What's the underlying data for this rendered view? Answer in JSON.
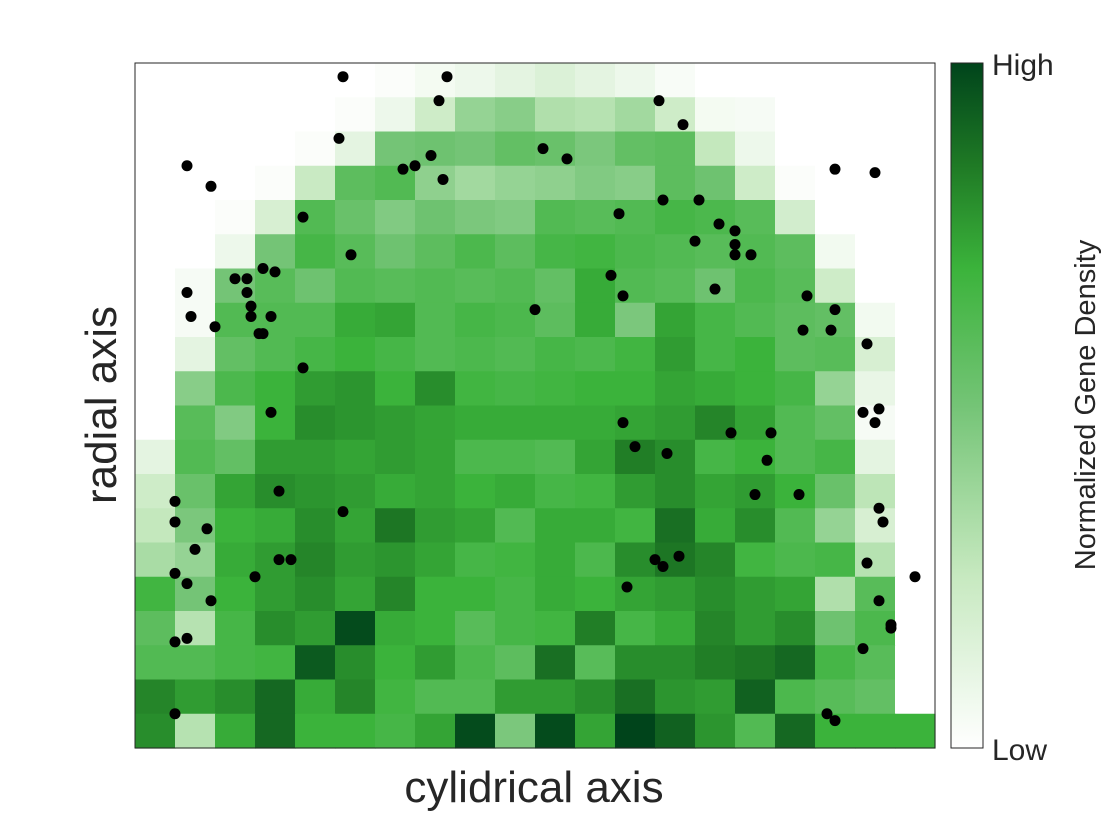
{
  "chart_data": {
    "type": "heatmap",
    "title": "",
    "xlabel": "cylidrical axis",
    "ylabel": "radial axis",
    "x_ticks": "none",
    "y_ticks": "none",
    "grid": false,
    "colorbar": {
      "label": "Normalized Gene Density",
      "high_label": "High",
      "low_label": "Low",
      "min_color": "#ffffff",
      "max_color": "#00441b",
      "position": "right"
    },
    "grid_size": {
      "columns": 20,
      "rows": 20
    },
    "density_matrix": [
      [
        0.0,
        0.0,
        0.0,
        0.0,
        0.0,
        0.0,
        0.02,
        0.05,
        0.08,
        0.12,
        0.16,
        0.12,
        0.08,
        0.03,
        0.0,
        0.0,
        0.0,
        0.0,
        0.0,
        0.0
      ],
      [
        0.0,
        0.0,
        0.0,
        0.0,
        0.0,
        0.02,
        0.08,
        0.22,
        0.4,
        0.44,
        0.32,
        0.3,
        0.36,
        0.22,
        0.05,
        0.04,
        0.0,
        0.0,
        0.0,
        0.0
      ],
      [
        0.0,
        0.0,
        0.0,
        0.0,
        0.02,
        0.12,
        0.5,
        0.52,
        0.5,
        0.56,
        0.54,
        0.48,
        0.56,
        0.58,
        0.26,
        0.08,
        0.0,
        0.0,
        0.0,
        0.0
      ],
      [
        0.0,
        0.0,
        0.0,
        0.02,
        0.24,
        0.58,
        0.62,
        0.42,
        0.36,
        0.4,
        0.42,
        0.46,
        0.44,
        0.58,
        0.52,
        0.22,
        0.02,
        0.0,
        0.0,
        0.0
      ],
      [
        0.0,
        0.0,
        0.02,
        0.18,
        0.62,
        0.54,
        0.46,
        0.52,
        0.48,
        0.46,
        0.62,
        0.6,
        0.62,
        0.66,
        0.64,
        0.6,
        0.2,
        0.0,
        0.0,
        0.0
      ],
      [
        0.0,
        0.0,
        0.08,
        0.5,
        0.66,
        0.6,
        0.52,
        0.58,
        0.64,
        0.58,
        0.66,
        0.68,
        0.64,
        0.62,
        0.6,
        0.62,
        0.58,
        0.06,
        0.0,
        0.0
      ],
      [
        0.0,
        0.04,
        0.5,
        0.6,
        0.52,
        0.62,
        0.6,
        0.62,
        0.6,
        0.62,
        0.56,
        0.72,
        0.62,
        0.6,
        0.52,
        0.64,
        0.6,
        0.22,
        0.0,
        0.0
      ],
      [
        0.0,
        0.04,
        0.62,
        0.62,
        0.62,
        0.72,
        0.74,
        0.62,
        0.66,
        0.64,
        0.58,
        0.72,
        0.48,
        0.74,
        0.66,
        0.62,
        0.58,
        0.56,
        0.06,
        0.0
      ],
      [
        0.0,
        0.12,
        0.56,
        0.62,
        0.66,
        0.7,
        0.66,
        0.62,
        0.64,
        0.62,
        0.66,
        0.64,
        0.68,
        0.76,
        0.66,
        0.7,
        0.58,
        0.6,
        0.18,
        0.0
      ],
      [
        0.0,
        0.44,
        0.64,
        0.7,
        0.76,
        0.78,
        0.7,
        0.8,
        0.68,
        0.66,
        0.68,
        0.7,
        0.7,
        0.74,
        0.72,
        0.7,
        0.66,
        0.4,
        0.1,
        0.0
      ],
      [
        0.0,
        0.6,
        0.46,
        0.7,
        0.8,
        0.78,
        0.76,
        0.74,
        0.72,
        0.72,
        0.72,
        0.72,
        0.74,
        0.76,
        0.82,
        0.74,
        0.62,
        0.56,
        0.04,
        0.0
      ],
      [
        0.12,
        0.62,
        0.56,
        0.76,
        0.76,
        0.74,
        0.76,
        0.74,
        0.64,
        0.64,
        0.62,
        0.74,
        0.84,
        0.8,
        0.66,
        0.7,
        0.62,
        0.66,
        0.12,
        0.0
      ],
      [
        0.22,
        0.54,
        0.74,
        0.8,
        0.78,
        0.76,
        0.72,
        0.74,
        0.7,
        0.72,
        0.66,
        0.68,
        0.76,
        0.8,
        0.74,
        0.76,
        0.7,
        0.54,
        0.28,
        0.0
      ],
      [
        0.26,
        0.48,
        0.7,
        0.72,
        0.8,
        0.74,
        0.86,
        0.76,
        0.74,
        0.62,
        0.72,
        0.72,
        0.68,
        0.88,
        0.72,
        0.8,
        0.62,
        0.4,
        0.18,
        0.0
      ],
      [
        0.34,
        0.4,
        0.72,
        0.76,
        0.82,
        0.76,
        0.78,
        0.74,
        0.66,
        0.68,
        0.72,
        0.64,
        0.8,
        0.86,
        0.82,
        0.68,
        0.64,
        0.66,
        0.3,
        0.0
      ],
      [
        0.68,
        0.5,
        0.7,
        0.76,
        0.8,
        0.74,
        0.82,
        0.7,
        0.7,
        0.66,
        0.72,
        0.7,
        0.74,
        0.76,
        0.8,
        0.76,
        0.74,
        0.32,
        0.6,
        0.0
      ],
      [
        0.58,
        0.3,
        0.66,
        0.8,
        0.76,
        0.98,
        0.72,
        0.7,
        0.6,
        0.66,
        0.68,
        0.84,
        0.66,
        0.72,
        0.82,
        0.76,
        0.8,
        0.52,
        0.64,
        0.0
      ],
      [
        0.62,
        0.62,
        0.66,
        0.68,
        0.94,
        0.8,
        0.7,
        0.76,
        0.64,
        0.58,
        0.88,
        0.6,
        0.8,
        0.8,
        0.84,
        0.86,
        0.9,
        0.66,
        0.6,
        0.0
      ],
      [
        0.82,
        0.76,
        0.8,
        0.9,
        0.72,
        0.82,
        0.68,
        0.62,
        0.62,
        0.76,
        0.76,
        0.8,
        0.88,
        0.78,
        0.76,
        0.92,
        0.64,
        0.6,
        0.56,
        0.0
      ],
      [
        0.8,
        0.3,
        0.72,
        0.9,
        0.7,
        0.7,
        0.66,
        0.74,
        0.98,
        0.48,
        0.98,
        0.74,
        1.0,
        0.92,
        0.78,
        0.62,
        0.9,
        0.7,
        0.7,
        0.7
      ]
    ],
    "scatter_points": [
      [
        5.2,
        19.6
      ],
      [
        7.8,
        19.6
      ],
      [
        7.6,
        18.9
      ],
      [
        13.1,
        18.9
      ],
      [
        13.7,
        18.2
      ],
      [
        5.1,
        17.8
      ],
      [
        10.2,
        17.5
      ],
      [
        10.8,
        17.2
      ],
      [
        1.3,
        17.0
      ],
      [
        6.7,
        16.9
      ],
      [
        7.0,
        17.0
      ],
      [
        7.4,
        17.3
      ],
      [
        7.7,
        16.6
      ],
      [
        18.5,
        16.8
      ],
      [
        17.5,
        16.9
      ],
      [
        1.9,
        16.4
      ],
      [
        13.2,
        16.0
      ],
      [
        14.1,
        16.0
      ],
      [
        12.1,
        15.6
      ],
      [
        4.2,
        15.5
      ],
      [
        14.6,
        15.3
      ],
      [
        15.0,
        15.1
      ],
      [
        14.0,
        14.8
      ],
      [
        5.4,
        14.4
      ],
      [
        15.0,
        14.7
      ],
      [
        15.0,
        14.4
      ],
      [
        15.4,
        14.4
      ],
      [
        3.2,
        14.0
      ],
      [
        3.5,
        13.9
      ],
      [
        2.5,
        13.7
      ],
      [
        2.8,
        13.7
      ],
      [
        11.9,
        13.8
      ],
      [
        14.5,
        13.4
      ],
      [
        2.8,
        13.3
      ],
      [
        12.2,
        13.2
      ],
      [
        16.8,
        13.2
      ],
      [
        1.3,
        13.3
      ],
      [
        2.9,
        12.9
      ],
      [
        17.5,
        12.8
      ],
      [
        10.0,
        12.8
      ],
      [
        1.4,
        12.6
      ],
      [
        2.0,
        12.3
      ],
      [
        2.9,
        12.6
      ],
      [
        3.4,
        12.6
      ],
      [
        3.1,
        12.1
      ],
      [
        3.2,
        12.1
      ],
      [
        16.7,
        12.2
      ],
      [
        17.4,
        12.2
      ],
      [
        18.3,
        11.8
      ],
      [
        4.2,
        11.1
      ],
      [
        3.4,
        9.8
      ],
      [
        18.2,
        9.8
      ],
      [
        18.6,
        9.9
      ],
      [
        18.5,
        9.5
      ],
      [
        12.2,
        9.5
      ],
      [
        14.9,
        9.2
      ],
      [
        15.9,
        9.2
      ],
      [
        12.5,
        8.8
      ],
      [
        13.3,
        8.6
      ],
      [
        15.8,
        8.4
      ],
      [
        3.6,
        7.5
      ],
      [
        15.5,
        7.4
      ],
      [
        16.6,
        7.4
      ],
      [
        1.0,
        7.2
      ],
      [
        5.2,
        6.9
      ],
      [
        18.6,
        7.0
      ],
      [
        18.7,
        6.6
      ],
      [
        1.0,
        6.6
      ],
      [
        1.8,
        6.4
      ],
      [
        1.5,
        5.8
      ],
      [
        3.6,
        5.5
      ],
      [
        3.9,
        5.5
      ],
      [
        13.6,
        5.6
      ],
      [
        13.0,
        5.5
      ],
      [
        13.2,
        5.3
      ],
      [
        18.3,
        5.4
      ],
      [
        1.0,
        5.1
      ],
      [
        1.3,
        4.8
      ],
      [
        3.0,
        5.0
      ],
      [
        12.3,
        4.7
      ],
      [
        19.5,
        5.0
      ],
      [
        18.6,
        4.3
      ],
      [
        1.9,
        4.3
      ],
      [
        18.9,
        3.6
      ],
      [
        18.9,
        3.5
      ],
      [
        1.0,
        3.1
      ],
      [
        1.3,
        3.2
      ],
      [
        18.2,
        2.9
      ],
      [
        1.0,
        1.0
      ],
      [
        17.3,
        1.0
      ],
      [
        17.5,
        0.8
      ]
    ]
  }
}
